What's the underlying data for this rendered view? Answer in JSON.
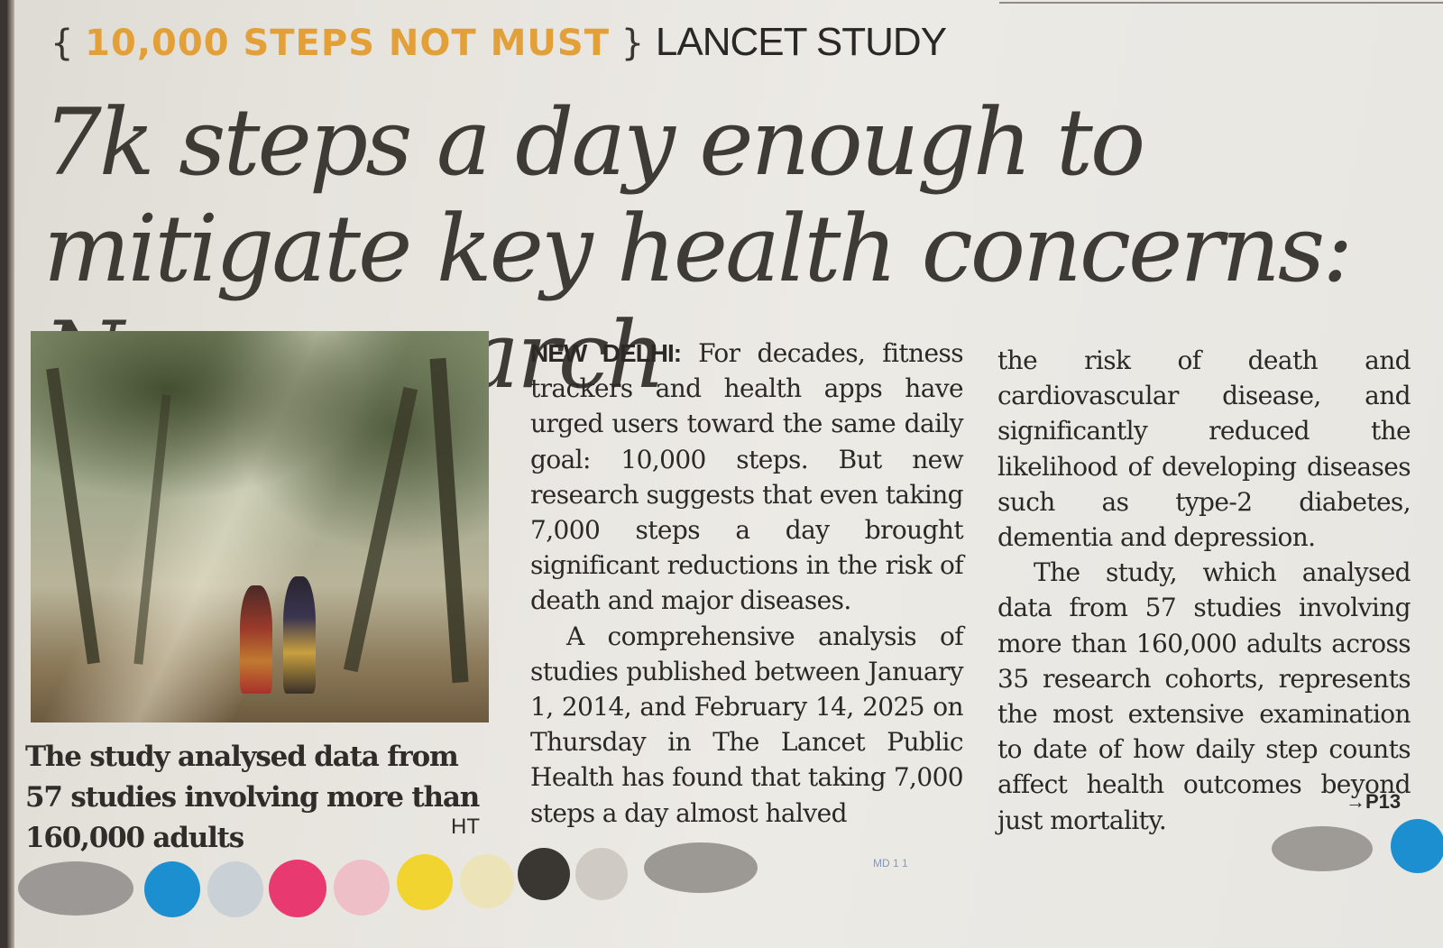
{
  "kicker": {
    "open_brace": "{",
    "tag": "10,000 STEPS NOT MUST",
    "close_brace": "}",
    "label": "LANCET STUDY"
  },
  "headline": "7k steps a day enough to mitigate key health concerns: New research",
  "photo": {
    "credit": "HT"
  },
  "caption": "The study analysed data from 57 studies involving more than 160,000 adults",
  "article": {
    "dateline": "NEW DELHI:",
    "p1": "For decades, fitness trackers and health apps have urged users toward the same daily goal: 10,000 steps. But new research suggests that even taking 7,000 steps a day brought significant reductions in the risk of death and major diseases.",
    "p2": "A comprehensive analysis of studies published between January 1, 2014, and February 14, 2025 on Thursday in The Lancet Public Health has found that taking 7,000 steps a day almost halved",
    "p3": "the risk of death and cardiovascular disease, and significantly reduced the likelihood of developing diseases such as type-2 diabetes, dementia and depression.",
    "p4": "The study, which analysed data from 57 studies involving more than 160,000 adults across 35 research cohorts, represents the most extensive examination to date of how daily step counts affect health outcomes beyond just mortality.",
    "jump": "→P13"
  },
  "folio": "MD 1    1",
  "colors": {
    "kicker_accent": "#e4a038",
    "headline": "#3e3b37",
    "body_text": "#2b2926",
    "paper": "#eceae5"
  }
}
